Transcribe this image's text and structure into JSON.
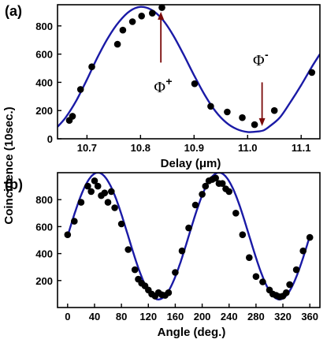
{
  "colors": {
    "curve": "#1a1aa6",
    "points": "#000000",
    "arrow": "#7a0a0a",
    "axes": "#000000"
  },
  "y_shared_label": "Coincidence (10sec.)",
  "chart_data": [
    {
      "id": "a",
      "panel_label": "(a)",
      "type": "scatter",
      "xlabel": "Delay (μm)",
      "xlim": [
        10.645,
        11.135
      ],
      "ylim": [
        0,
        950
      ],
      "xticks": [
        "10.7",
        "10.8",
        "10.9",
        "11.0",
        "11.1"
      ],
      "xtick_values": [
        10.7,
        10.8,
        10.9,
        11.0,
        11.1
      ],
      "yticks": [
        "0",
        "200",
        "400",
        "600",
        "800"
      ],
      "ytick_values": [
        0,
        200,
        400,
        600,
        800
      ],
      "points": {
        "x": [
          10.667,
          10.673,
          10.688,
          10.709,
          10.757,
          10.767,
          10.785,
          10.802,
          10.822,
          10.84,
          10.901,
          10.931,
          10.962,
          10.99,
          11.013,
          11.05,
          11.12
        ],
        "y": [
          130,
          160,
          350,
          510,
          670,
          770,
          830,
          870,
          890,
          930,
          390,
          230,
          190,
          150,
          100,
          200,
          470
        ]
      },
      "fit": {
        "x": [
          10.645,
          10.66,
          10.68,
          10.7,
          10.72,
          10.74,
          10.76,
          10.78,
          10.8,
          10.82,
          10.84,
          10.86,
          10.88,
          10.9,
          10.92,
          10.94,
          10.96,
          10.98,
          11.0,
          11.02,
          11.03,
          11.04,
          11.06,
          11.08,
          11.1,
          11.12,
          11.135
        ],
        "y": [
          85,
          150,
          270,
          420,
          580,
          720,
          830,
          905,
          935,
          915,
          850,
          740,
          600,
          450,
          310,
          195,
          115,
          68,
          48,
          52,
          60,
          85,
          150,
          260,
          380,
          510,
          600
        ]
      },
      "annotations": [
        {
          "text": "Φ",
          "sup": "+",
          "arrow_from": [
            10.838,
            540
          ],
          "arrow_to": [
            10.838,
            900
          ],
          "text_at": [
            10.825,
            330
          ]
        },
        {
          "text": "Φ",
          "sup": "-",
          "arrow_from": [
            11.027,
            400
          ],
          "arrow_to": [
            11.027,
            90
          ],
          "text_at": [
            11.01,
            520
          ]
        }
      ]
    },
    {
      "id": "b",
      "panel_label": "(b)",
      "type": "scatter",
      "xlabel": "Angle (deg.)",
      "xlim": [
        -15,
        375
      ],
      "ylim": [
        0,
        1000
      ],
      "xticks": [
        "0",
        "40",
        "80",
        "120",
        "160",
        "200",
        "240",
        "280",
        "320",
        "360"
      ],
      "xtick_values": [
        0,
        40,
        80,
        120,
        160,
        200,
        240,
        280,
        320,
        360
      ],
      "yticks": [
        "200",
        "400",
        "600",
        "800"
      ],
      "ytick_values": [
        200,
        400,
        600,
        800
      ],
      "points": {
        "x": [
          0,
          10,
          20,
          30,
          35,
          40,
          45,
          50,
          55,
          60,
          65,
          70,
          80,
          90,
          100,
          105,
          110,
          115,
          120,
          125,
          130,
          135,
          140,
          145,
          150,
          160,
          170,
          180,
          190,
          200,
          205,
          210,
          215,
          220,
          225,
          230,
          235,
          240,
          250,
          260,
          270,
          280,
          290,
          300,
          305,
          310,
          315,
          320,
          325,
          330,
          340,
          350,
          360
        ],
        "y": [
          540,
          640,
          780,
          900,
          860,
          940,
          900,
          830,
          850,
          780,
          860,
          740,
          620,
          430,
          280,
          210,
          180,
          160,
          130,
          100,
          85,
          110,
          95,
          90,
          110,
          260,
          420,
          590,
          760,
          840,
          900,
          940,
          950,
          960,
          920,
          920,
          880,
          860,
          700,
          540,
          370,
          230,
          190,
          130,
          100,
          90,
          80,
          85,
          110,
          170,
          280,
          420,
          520
        ]
      },
      "fit": {
        "amplitude": 470,
        "offset": 530,
        "period_deg": 180,
        "peak_deg": 45
      }
    }
  ]
}
